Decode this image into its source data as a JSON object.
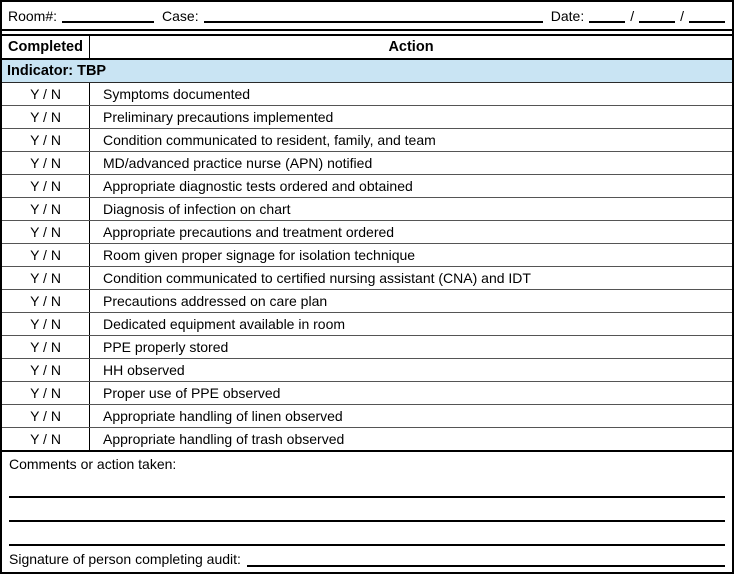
{
  "form": {
    "room_label": "Room#:",
    "case_label": "Case:",
    "date_label": "Date:",
    "date_slash": "/"
  },
  "table": {
    "header": {
      "completed": "Completed",
      "action": "Action"
    },
    "indicator": "Indicator: TBP",
    "rows": [
      {
        "completed": "Y / N",
        "action": "Symptoms documented"
      },
      {
        "completed": "Y / N",
        "action": "Preliminary precautions implemented"
      },
      {
        "completed": "Y / N",
        "action": "Condition communicated to resident, family, and team"
      },
      {
        "completed": "Y / N",
        "action": "MD/advanced practice nurse (APN) notified"
      },
      {
        "completed": "Y / N",
        "action": "Appropriate diagnostic tests ordered and obtained"
      },
      {
        "completed": "Y / N",
        "action": "Diagnosis of infection on chart"
      },
      {
        "completed": "Y / N",
        "action": "Appropriate precautions and treatment ordered"
      },
      {
        "completed": "Y / N",
        "action": "Room given proper signage for isolation technique"
      },
      {
        "completed": "Y / N",
        "action": "Condition communicated to certified nursing assistant (CNA) and IDT"
      },
      {
        "completed": "Y / N",
        "action": "Precautions addressed on care plan"
      },
      {
        "completed": "Y / N",
        "action": "Dedicated equipment available in room"
      },
      {
        "completed": "Y / N",
        "action": "PPE properly stored"
      },
      {
        "completed": "Y / N",
        "action": "HH observed"
      },
      {
        "completed": "Y / N",
        "action": "Proper use of PPE observed"
      },
      {
        "completed": "Y / N",
        "action": "Appropriate handling of linen observed"
      },
      {
        "completed": "Y / N",
        "action": "Appropriate handling of trash observed"
      }
    ]
  },
  "footer": {
    "comments_label": "Comments or action taken:",
    "signature_label": "Signature of person completing audit:"
  },
  "colors": {
    "indicator_highlight": "#C9E4F3",
    "border": "#000000"
  }
}
